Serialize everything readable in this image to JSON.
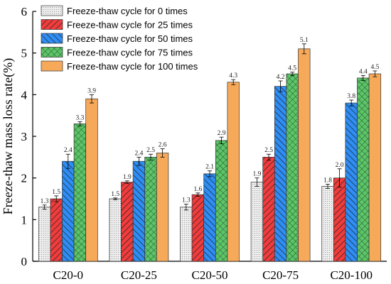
{
  "chart_data": {
    "type": "bar",
    "title": "",
    "xlabel": "",
    "ylabel": "Freeze-thaw mass loss rate(%)",
    "ylim": [
      0,
      6
    ],
    "yticks": [
      0,
      1,
      2,
      3,
      4,
      5,
      6
    ],
    "categories": [
      "C20-0",
      "C20-25",
      "C20-50",
      "C20-75",
      "C20-100"
    ],
    "series": [
      {
        "name": "Freeze-thaw cycle for 0 times",
        "values": [
          1.3,
          1.5,
          1.3,
          1.9,
          1.8
        ],
        "errors": [
          0.05,
          0.02,
          0.07,
          0.1,
          0.05
        ],
        "labels": [
          "1.3",
          "1.5",
          "1.3",
          "1.9",
          "1.8"
        ],
        "color": "#e6e6e6",
        "pattern": "dots"
      },
      {
        "name": "Freeze-thaw cycle for 25 times",
        "values": [
          1.5,
          1.9,
          1.6,
          2.5,
          2.0
        ],
        "errors": [
          0.07,
          0.03,
          0.04,
          0.07,
          0.22
        ],
        "labels": [
          "1.5",
          "1.9",
          "1.6",
          "2.5",
          "2.0"
        ],
        "color": "#f03c3c",
        "pattern": "diag-right"
      },
      {
        "name": "Freeze-thaw cycle for 50 times",
        "values": [
          2.4,
          2.4,
          2.1,
          4.2,
          3.8
        ],
        "errors": [
          0.17,
          0.1,
          0.07,
          0.13,
          0.07
        ],
        "labels": [
          "2.4",
          "2.4",
          "2.1",
          "4.2",
          "3.8"
        ],
        "color": "#2e8ef5",
        "pattern": "diag-left"
      },
      {
        "name": "Freeze-thaw cycle for 75 times",
        "values": [
          3.3,
          2.5,
          2.9,
          4.5,
          4.4
        ],
        "errors": [
          0.05,
          0.07,
          0.08,
          0.04,
          0.06
        ],
        "labels": [
          "3.3",
          "2.5",
          "2.9",
          "4.5",
          "4.4"
        ],
        "color": "#5ec46a",
        "pattern": "crosshatch"
      },
      {
        "name": "Freeze-thaw cycle for 100 times",
        "values": [
          3.9,
          2.6,
          4.3,
          5.1,
          4.5
        ],
        "errors": [
          0.1,
          0.1,
          0.06,
          0.12,
          0.07
        ],
        "labels": [
          "3.9",
          "2.6",
          "4.3",
          "5.1",
          "4.5"
        ],
        "color": "#f7a95a",
        "pattern": "solid"
      }
    ],
    "legend": "top-left",
    "grid": false
  }
}
